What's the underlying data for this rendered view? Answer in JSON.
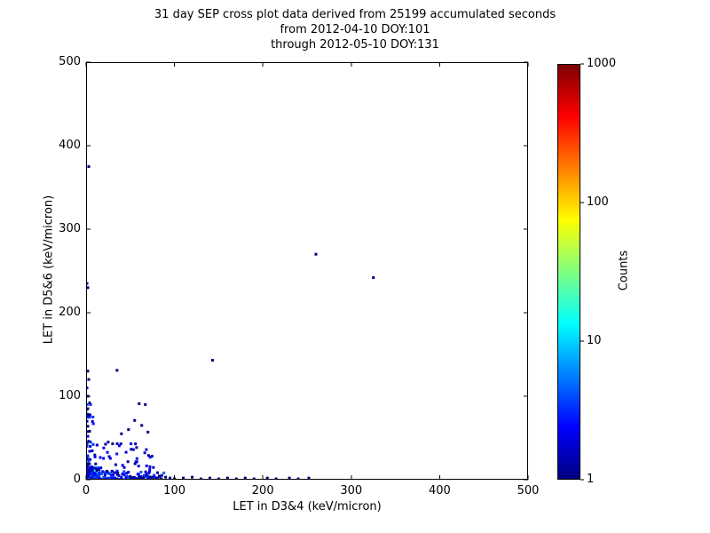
{
  "chart_data": {
    "type": "scatter",
    "title_lines": [
      "31 day SEP cross plot data derived from 25199 accumulated seconds",
      "from 2012-04-10 DOY:101",
      "through 2012-05-10 DOY:131"
    ],
    "xlabel": "LET in D3&4 (keV/micron)",
    "ylabel": "LET in D5&6 (keV/micron)",
    "xlim": [
      0,
      500
    ],
    "ylim": [
      0,
      500
    ],
    "xticks": [
      0,
      100,
      200,
      300,
      400,
      500
    ],
    "yticks": [
      0,
      100,
      200,
      300,
      400,
      500
    ],
    "grid": false,
    "background": "#ffffff",
    "frame_color": "#000000",
    "seed": 20120410,
    "colorbar": {
      "label": "Counts",
      "scale": "log",
      "lim": [
        1,
        1000
      ],
      "ticks": [
        1,
        10,
        100,
        1000
      ],
      "colormap": "jet",
      "stops": [
        {
          "pos": 0.0,
          "color": "#00007f"
        },
        {
          "pos": 0.125,
          "color": "#0000ff"
        },
        {
          "pos": 0.375,
          "color": "#00ffff"
        },
        {
          "pos": 0.625,
          "color": "#ffff00"
        },
        {
          "pos": 0.875,
          "color": "#ff0000"
        },
        {
          "pos": 1.0,
          "color": "#7f0000"
        }
      ]
    },
    "dense_regions": [
      {
        "x": [
          0,
          15
        ],
        "y": [
          0,
          15
        ],
        "n": 350,
        "c": [
          1,
          40
        ],
        "bias": 1.6
      },
      {
        "x": [
          0,
          6
        ],
        "y": [
          0,
          6
        ],
        "n": 120,
        "c": [
          5,
          80
        ],
        "bias": 1.2
      },
      {
        "x": [
          0,
          90
        ],
        "y": [
          0,
          10
        ],
        "n": 140,
        "c": [
          1,
          5
        ],
        "bias": 1.5
      },
      {
        "x": [
          0,
          10
        ],
        "y": [
          0,
          90
        ],
        "n": 60,
        "c": [
          1,
          4
        ],
        "bias": 1.8
      },
      {
        "x": [
          10,
          80
        ],
        "y": [
          10,
          45
        ],
        "n": 45,
        "c": [
          1,
          3
        ],
        "bias": 1.3
      }
    ],
    "points": [
      {
        "x": 3,
        "y": 375,
        "c": 1
      },
      {
        "x": 1,
        "y": 235,
        "c": 2
      },
      {
        "x": 2,
        "y": 230,
        "c": 1
      },
      {
        "x": 2,
        "y": 130,
        "c": 1
      },
      {
        "x": 3,
        "y": 120,
        "c": 1
      },
      {
        "x": 1,
        "y": 110,
        "c": 2
      },
      {
        "x": 2,
        "y": 100,
        "c": 1
      },
      {
        "x": 4,
        "y": 92,
        "c": 1
      },
      {
        "x": 2,
        "y": 85,
        "c": 1
      },
      {
        "x": 3,
        "y": 78,
        "c": 1
      },
      {
        "x": 1,
        "y": 70,
        "c": 2
      },
      {
        "x": 2,
        "y": 64,
        "c": 1
      },
      {
        "x": 4,
        "y": 58,
        "c": 1
      },
      {
        "x": 2,
        "y": 52,
        "c": 2
      },
      {
        "x": 3,
        "y": 46,
        "c": 1
      },
      {
        "x": 1,
        "y": 40,
        "c": 3
      },
      {
        "x": 4,
        "y": 34,
        "c": 2
      },
      {
        "x": 2,
        "y": 28,
        "c": 3
      },
      {
        "x": 3,
        "y": 22,
        "c": 4
      },
      {
        "x": 35,
        "y": 131,
        "c": 1
      },
      {
        "x": 60,
        "y": 91,
        "c": 1
      },
      {
        "x": 67,
        "y": 90,
        "c": 1
      },
      {
        "x": 55,
        "y": 71,
        "c": 1
      },
      {
        "x": 63,
        "y": 65,
        "c": 1
      },
      {
        "x": 48,
        "y": 60,
        "c": 1
      },
      {
        "x": 40,
        "y": 55,
        "c": 1
      },
      {
        "x": 70,
        "y": 57,
        "c": 1
      },
      {
        "x": 25,
        "y": 45,
        "c": 1
      },
      {
        "x": 30,
        "y": 43,
        "c": 1
      },
      {
        "x": 20,
        "y": 38,
        "c": 2
      },
      {
        "x": 143,
        "y": 143,
        "c": 1
      },
      {
        "x": 260,
        "y": 270,
        "c": 1
      },
      {
        "x": 325,
        "y": 242,
        "c": 1
      },
      {
        "x": 20,
        "y": 3,
        "c": 4
      },
      {
        "x": 25,
        "y": 2,
        "c": 3
      },
      {
        "x": 30,
        "y": 4,
        "c": 3
      },
      {
        "x": 35,
        "y": 1,
        "c": 2
      },
      {
        "x": 40,
        "y": 3,
        "c": 2
      },
      {
        "x": 45,
        "y": 2,
        "c": 2
      },
      {
        "x": 50,
        "y": 4,
        "c": 1
      },
      {
        "x": 55,
        "y": 1,
        "c": 2
      },
      {
        "x": 60,
        "y": 3,
        "c": 1
      },
      {
        "x": 65,
        "y": 2,
        "c": 1
      },
      {
        "x": 70,
        "y": 1,
        "c": 2
      },
      {
        "x": 75,
        "y": 3,
        "c": 1
      },
      {
        "x": 80,
        "y": 2,
        "c": 1
      },
      {
        "x": 85,
        "y": 1,
        "c": 1
      },
      {
        "x": 90,
        "y": 3,
        "c": 1
      },
      {
        "x": 95,
        "y": 2,
        "c": 1
      },
      {
        "x": 100,
        "y": 1,
        "c": 1
      },
      {
        "x": 110,
        "y": 2,
        "c": 1
      },
      {
        "x": 120,
        "y": 3,
        "c": 1
      },
      {
        "x": 130,
        "y": 1,
        "c": 1
      },
      {
        "x": 140,
        "y": 2,
        "c": 1
      },
      {
        "x": 150,
        "y": 1,
        "c": 1
      },
      {
        "x": 160,
        "y": 2,
        "c": 1
      },
      {
        "x": 170,
        "y": 1,
        "c": 1
      },
      {
        "x": 180,
        "y": 2,
        "c": 1
      },
      {
        "x": 190,
        "y": 1,
        "c": 1
      },
      {
        "x": 205,
        "y": 2,
        "c": 1
      },
      {
        "x": 215,
        "y": 1,
        "c": 1
      },
      {
        "x": 230,
        "y": 2,
        "c": 1
      },
      {
        "x": 240,
        "y": 1,
        "c": 1
      },
      {
        "x": 252,
        "y": 2,
        "c": 1
      }
    ]
  }
}
